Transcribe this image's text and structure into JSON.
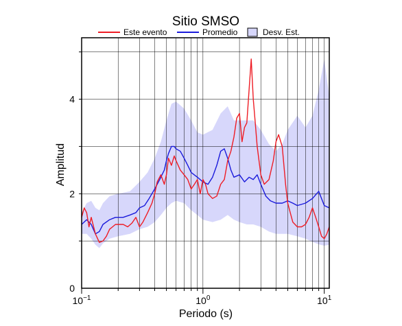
{
  "chart_data": {
    "type": "line",
    "title": "Sitio SMSO",
    "xlabel": "Periodo (s)",
    "ylabel": "Amplitud",
    "xscale": "log",
    "xlim": [
      0.1,
      11
    ],
    "ylim": [
      0,
      5.3
    ],
    "grid": true,
    "legend_position": "top",
    "x_ticks": [
      {
        "value": 0.1,
        "base": "10",
        "exp": "−1"
      },
      {
        "value": 1,
        "base": "10",
        "exp": "0"
      },
      {
        "value": 10,
        "base": "10",
        "exp": "1"
      }
    ],
    "y_ticks": [
      {
        "value": 0,
        "label": "0"
      },
      {
        "value": 2,
        "label": "2"
      },
      {
        "value": 4,
        "label": "4"
      }
    ],
    "legend": [
      {
        "label": "Este evento",
        "kind": "line",
        "color": "#ee1c24"
      },
      {
        "label": "Promedio",
        "kind": "line",
        "color": "#1a1adb"
      },
      {
        "label": "Desv. Est.",
        "kind": "patch",
        "color": "#d7d7fb"
      }
    ],
    "series": [
      {
        "name": "Este evento",
        "color": "#ee1c24",
        "x": [
          0.1,
          0.105,
          0.11,
          0.115,
          0.12,
          0.13,
          0.14,
          0.15,
          0.16,
          0.17,
          0.18,
          0.19,
          0.2,
          0.22,
          0.24,
          0.26,
          0.28,
          0.3,
          0.32,
          0.35,
          0.38,
          0.4,
          0.42,
          0.45,
          0.48,
          0.5,
          0.52,
          0.55,
          0.58,
          0.6,
          0.65,
          0.7,
          0.75,
          0.8,
          0.85,
          0.9,
          0.95,
          1.0,
          1.05,
          1.1,
          1.2,
          1.3,
          1.4,
          1.5,
          1.6,
          1.7,
          1.8,
          1.9,
          2.0,
          2.1,
          2.2,
          2.3,
          2.4,
          2.5,
          2.6,
          2.7,
          2.8,
          3.0,
          3.2,
          3.5,
          3.8,
          4.0,
          4.2,
          4.5,
          4.8,
          5.0,
          5.5,
          6.0,
          6.5,
          7.0,
          7.5,
          8.0,
          8.5,
          9.0,
          9.5,
          10.0,
          10.5,
          11.0
        ],
        "y": [
          1.5,
          1.7,
          1.6,
          1.3,
          1.5,
          1.15,
          0.97,
          1.0,
          1.1,
          1.25,
          1.3,
          1.35,
          1.35,
          1.35,
          1.3,
          1.38,
          1.5,
          1.3,
          1.4,
          1.6,
          1.8,
          2.0,
          2.25,
          2.4,
          2.2,
          2.4,
          2.75,
          2.6,
          2.8,
          2.7,
          2.5,
          2.4,
          2.3,
          2.1,
          2.2,
          2.3,
          2.0,
          2.3,
          2.2,
          2.0,
          1.9,
          1.95,
          2.2,
          2.3,
          2.7,
          2.9,
          3.2,
          3.6,
          3.7,
          3.1,
          3.4,
          3.5,
          4.2,
          4.85,
          4.0,
          3.5,
          3.0,
          2.4,
          2.2,
          2.3,
          2.7,
          3.1,
          3.25,
          3.0,
          2.2,
          1.8,
          1.4,
          1.3,
          1.3,
          1.35,
          1.5,
          1.7,
          1.5,
          1.3,
          1.1,
          1.05,
          1.15,
          1.3
        ]
      },
      {
        "name": "Promedio",
        "color": "#1a1adb",
        "x": [
          0.1,
          0.11,
          0.12,
          0.13,
          0.14,
          0.15,
          0.17,
          0.19,
          0.2,
          0.22,
          0.25,
          0.28,
          0.3,
          0.33,
          0.36,
          0.4,
          0.44,
          0.48,
          0.5,
          0.52,
          0.55,
          0.58,
          0.6,
          0.65,
          0.7,
          0.75,
          0.8,
          0.9,
          1.0,
          1.1,
          1.2,
          1.3,
          1.4,
          1.5,
          1.6,
          1.7,
          1.8,
          2.0,
          2.2,
          2.4,
          2.6,
          2.8,
          3.0,
          3.3,
          3.6,
          4.0,
          4.5,
          5.0,
          5.5,
          6.0,
          7.0,
          8.0,
          9.0,
          10.0,
          11.0
        ],
        "y": [
          1.35,
          1.45,
          1.35,
          1.15,
          1.2,
          1.35,
          1.45,
          1.5,
          1.5,
          1.5,
          1.55,
          1.6,
          1.7,
          1.75,
          1.9,
          2.1,
          2.3,
          2.5,
          2.7,
          2.85,
          3.0,
          3.0,
          2.95,
          2.9,
          2.75,
          2.6,
          2.45,
          2.35,
          2.25,
          2.2,
          2.35,
          2.6,
          2.9,
          2.95,
          2.75,
          2.5,
          2.35,
          2.4,
          2.25,
          2.35,
          2.3,
          2.4,
          2.2,
          1.95,
          1.85,
          1.8,
          1.8,
          1.85,
          1.8,
          1.75,
          1.8,
          1.9,
          2.05,
          1.75,
          1.7
        ]
      }
    ],
    "band": {
      "name": "Desv. Est.",
      "color": "#d7d7fb",
      "x": [
        0.1,
        0.11,
        0.12,
        0.13,
        0.14,
        0.15,
        0.17,
        0.2,
        0.25,
        0.3,
        0.35,
        0.4,
        0.45,
        0.5,
        0.55,
        0.6,
        0.7,
        0.8,
        0.9,
        1.0,
        1.2,
        1.4,
        1.6,
        1.8,
        2.0,
        2.3,
        2.6,
        3.0,
        3.5,
        4.0,
        4.5,
        5.0,
        6.0,
        7.0,
        8.0,
        9.0,
        10.0,
        11.0
      ],
      "upper": [
        1.6,
        1.8,
        1.85,
        1.7,
        1.65,
        1.8,
        1.95,
        2.0,
        2.05,
        2.25,
        2.45,
        2.75,
        3.1,
        3.55,
        3.9,
        3.95,
        3.8,
        3.55,
        3.3,
        3.25,
        3.35,
        3.7,
        3.85,
        3.55,
        3.55,
        3.55,
        3.55,
        3.35,
        3.05,
        2.9,
        3.05,
        3.35,
        3.65,
        3.4,
        3.65,
        4.2,
        4.85,
        4.05
      ],
      "lower": [
        1.15,
        1.15,
        1.05,
        0.92,
        0.85,
        0.95,
        1.05,
        1.1,
        1.15,
        1.25,
        1.3,
        1.4,
        1.55,
        1.7,
        1.8,
        1.85,
        1.8,
        1.65,
        1.55,
        1.45,
        1.4,
        1.45,
        1.55,
        1.45,
        1.4,
        1.35,
        1.35,
        1.3,
        1.2,
        1.15,
        1.15,
        1.15,
        1.1,
        1.05,
        0.98,
        0.93,
        0.9,
        0.92
      ]
    }
  }
}
